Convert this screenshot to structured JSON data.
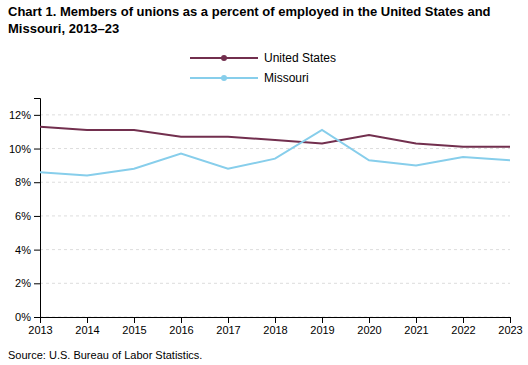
{
  "chart_data": {
    "type": "line",
    "title": [
      "Chart 1. Members of unions as a percent of employed in the United States and",
      "Missouri,  2013–23"
    ],
    "source": "Source: U.S. Bureau of Labor Statistics.",
    "x": [
      2013,
      2014,
      2015,
      2016,
      2017,
      2018,
      2019,
      2020,
      2021,
      2022,
      2023
    ],
    "series": [
      {
        "name": "United States",
        "color": "#722F4E",
        "values": [
          11.3,
          11.1,
          11.1,
          10.7,
          10.7,
          10.5,
          10.3,
          10.8,
          10.3,
          10.1,
          10.1
        ]
      },
      {
        "name": "Missouri",
        "color": "#87CEEB",
        "values": [
          8.6,
          8.4,
          8.8,
          9.7,
          8.8,
          9.4,
          11.1,
          9.3,
          9.0,
          9.5,
          9.3
        ]
      }
    ],
    "xlim": [
      2013,
      2023
    ],
    "xticks": [
      2013,
      2014,
      2015,
      2016,
      2017,
      2018,
      2019,
      2020,
      2021,
      2022,
      2023
    ],
    "ylim": [
      0,
      13
    ],
    "yticks": [
      {
        "value": 0,
        "label": "0%"
      },
      {
        "value": 2,
        "label": "2%"
      },
      {
        "value": 4,
        "label": "4%"
      },
      {
        "value": 6,
        "label": "6%"
      },
      {
        "value": 8,
        "label": "8%"
      },
      {
        "value": 10,
        "label": "10%"
      },
      {
        "value": 12,
        "label": "12%"
      }
    ],
    "grid": true,
    "legend": "top"
  }
}
